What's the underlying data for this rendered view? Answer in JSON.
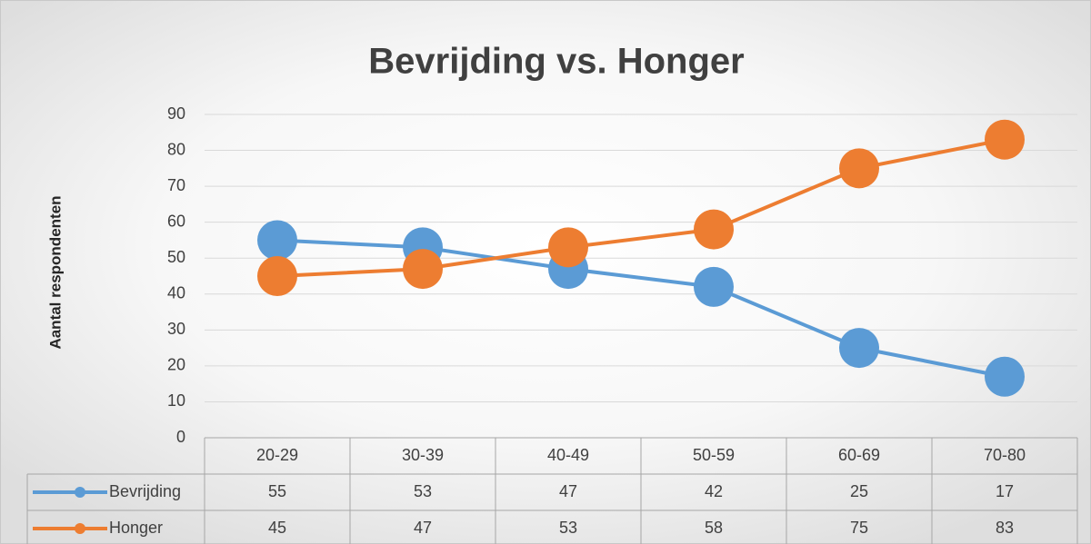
{
  "chart_data": {
    "type": "line",
    "title": "Bevrijding vs. Honger",
    "y_label": "Aantal respondenten",
    "categories": [
      "20-29",
      "30-39",
      "40-49",
      "50-59",
      "60-69",
      "70-80"
    ],
    "series": [
      {
        "name": "Bevrijding",
        "color": "#5b9bd5",
        "values": [
          55,
          53,
          47,
          42,
          25,
          17
        ]
      },
      {
        "name": "Honger",
        "color": "#ed7d31",
        "values": [
          45,
          47,
          53,
          58,
          75,
          83
        ]
      }
    ],
    "ylim": [
      0,
      90
    ],
    "yticks": [
      0,
      10,
      20,
      30,
      40,
      50,
      60,
      70,
      80,
      90
    ],
    "grid": true,
    "data_table": true
  }
}
